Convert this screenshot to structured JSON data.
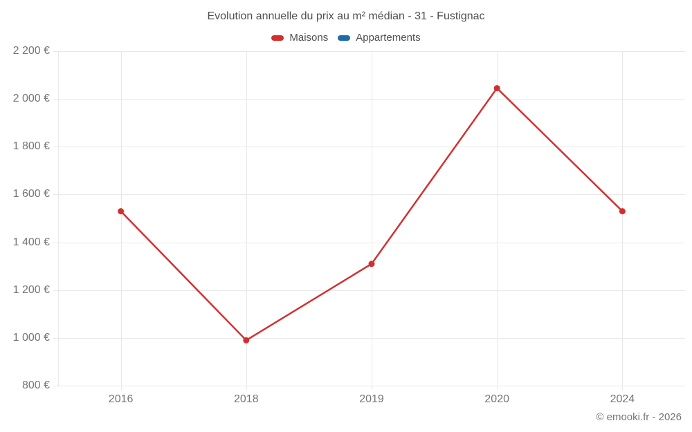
{
  "chart_data": {
    "type": "line",
    "title": "Evolution annuelle du prix au m² médian - 31 - Fustignac",
    "categories": [
      "2016",
      "2018",
      "2019",
      "2020",
      "2024"
    ],
    "series": [
      {
        "name": "Maisons",
        "color": "#d32f2f",
        "values": [
          1530,
          990,
          1310,
          2045,
          1530
        ]
      },
      {
        "name": "Appartements",
        "color": "#1b6ca8",
        "values": []
      }
    ],
    "y_axis": {
      "min": 800,
      "max": 2200,
      "ticks": [
        800,
        1000,
        1200,
        1400,
        1600,
        1800,
        2000,
        2200
      ],
      "tick_labels": [
        "800 €",
        "1 000 €",
        "1 200 €",
        "1 400 €",
        "1 600 €",
        "1 800 €",
        "2 000 €",
        "2 200 €"
      ]
    },
    "grid": true,
    "grid_color": "#e8e8e8",
    "legend_position": "top",
    "xlabel": "",
    "ylabel": ""
  },
  "footer": {
    "copyright": "© emooki.fr - 2026"
  }
}
